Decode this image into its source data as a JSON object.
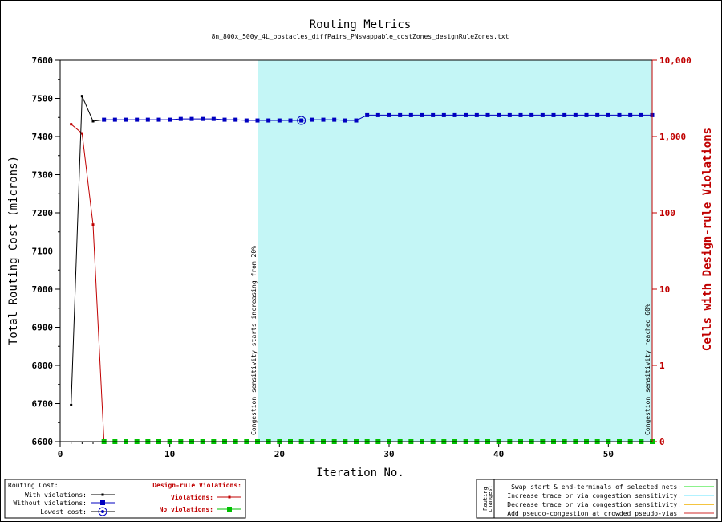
{
  "chart_data": {
    "type": "line",
    "title": "Routing Metrics",
    "subtitle": "8n_800x_500y_4L_obstacles_diffPairs_PNswappable_costZones_designRuleZones.txt",
    "xlabel": "Iteration No.",
    "ylabel_left": "Total Routing Cost (microns)",
    "ylabel_right": "Cells with Design-rule Violations",
    "xlim": [
      0,
      54
    ],
    "ylim_left": [
      6600,
      7600
    ],
    "ylim_right_log": [
      1,
      10000
    ],
    "x_ticks": [
      "0",
      "10",
      "20",
      "30",
      "40",
      "50"
    ],
    "y_left_ticks": [
      "6600",
      "6700",
      "6800",
      "6900",
      "7000",
      "7100",
      "7200",
      "7300",
      "7400",
      "7500",
      "7600"
    ],
    "y_right_ticks": [
      "0",
      "1",
      "10",
      "100",
      "1,000",
      "10,000"
    ],
    "shaded_region": {
      "x_start": 18,
      "x_end": 54,
      "color": "#c4f6f6"
    },
    "annotations": [
      {
        "x": 18,
        "text": "Congestion sensitivity starts increasing from 20%"
      },
      {
        "x": 54,
        "text": "Congestion sensitivity reached 60%"
      }
    ],
    "series": [
      {
        "name": "With violations",
        "axis": "left",
        "color": "#000000",
        "x": [
          1,
          2,
          3,
          4
        ],
        "y": [
          6696,
          7506,
          7440,
          7444
        ]
      },
      {
        "name": "Without violations",
        "axis": "left",
        "color": "#0000c0",
        "x": [
          4,
          5,
          6,
          7,
          8,
          9,
          10,
          11,
          12,
          13,
          14,
          15,
          16,
          17,
          18,
          19,
          20,
          21,
          22,
          23,
          24,
          25,
          26,
          27,
          28,
          29,
          30,
          31,
          32,
          33,
          34,
          35,
          36,
          37,
          38,
          39,
          40,
          41,
          42,
          43,
          44,
          45,
          46,
          47,
          48,
          49,
          50,
          51,
          52,
          53,
          54
        ],
        "y": [
          7444,
          7444,
          7444,
          7444,
          7444,
          7444,
          7444,
          7446,
          7446,
          7446,
          7446,
          7444,
          7444,
          7442,
          7442,
          7442,
          7442,
          7442,
          7442,
          7444,
          7444,
          7444,
          7442,
          7442,
          7456,
          7456,
          7456,
          7456,
          7456,
          7456,
          7456,
          7456,
          7456,
          7456,
          7456,
          7456,
          7456,
          7456,
          7456,
          7456,
          7456,
          7456,
          7456,
          7456,
          7456,
          7456,
          7456,
          7456,
          7456,
          7456,
          7456
        ]
      },
      {
        "name": "Lowest cost",
        "axis": "left",
        "color": "#0000c0",
        "x": [
          22
        ],
        "y": [
          7442
        ]
      },
      {
        "name": "Violations",
        "axis": "right",
        "color": "#c00000",
        "x": [
          1,
          2,
          3,
          4
        ],
        "y": [
          1450,
          1100,
          70,
          0
        ]
      },
      {
        "name": "No violations",
        "axis": "right",
        "color": "#00c000",
        "x": [
          4,
          5,
          6,
          7,
          8,
          9,
          10,
          11,
          12,
          13,
          14,
          15,
          16,
          17,
          18,
          19,
          20,
          21,
          22,
          23,
          24,
          25,
          26,
          27,
          28,
          29,
          30,
          31,
          32,
          33,
          34,
          35,
          36,
          37,
          38,
          39,
          40,
          41,
          42,
          43,
          44,
          45,
          46,
          47,
          48,
          49,
          50,
          51,
          52,
          53,
          54
        ],
        "y": [
          0,
          0,
          0,
          0,
          0,
          0,
          0,
          0,
          0,
          0,
          0,
          0,
          0,
          0,
          0,
          0,
          0,
          0,
          0,
          0,
          0,
          0,
          0,
          0,
          0,
          0,
          0,
          0,
          0,
          0,
          0,
          0,
          0,
          0,
          0,
          0,
          0,
          0,
          0,
          0,
          0,
          0,
          0,
          0,
          0,
          0,
          0,
          0,
          0,
          0,
          0
        ]
      }
    ]
  },
  "legend_left": {
    "header_cost": "Routing Cost:",
    "with_violations": "With violations:",
    "without_violations": "Without violations:",
    "lowest_cost": "Lowest cost:",
    "header_drv": "Design-rule Violations:",
    "violations": "Violations:",
    "no_violations": "No violations:"
  },
  "legend_right": {
    "side_label_1": "Routing",
    "side_label_2": "changes:",
    "items": [
      {
        "label": "Swap start & end-terminals of selected nets:",
        "color": "#66ee66"
      },
      {
        "label": "Increase trace or via congestion sensitivity:",
        "color": "#99eeff"
      },
      {
        "label": "Decrease trace or via congestion sensitivity:",
        "color": "#f0b000"
      },
      {
        "label": "Add pseudo-congestion at crowded pseudo-vias:",
        "color": "#e07070"
      }
    ]
  }
}
